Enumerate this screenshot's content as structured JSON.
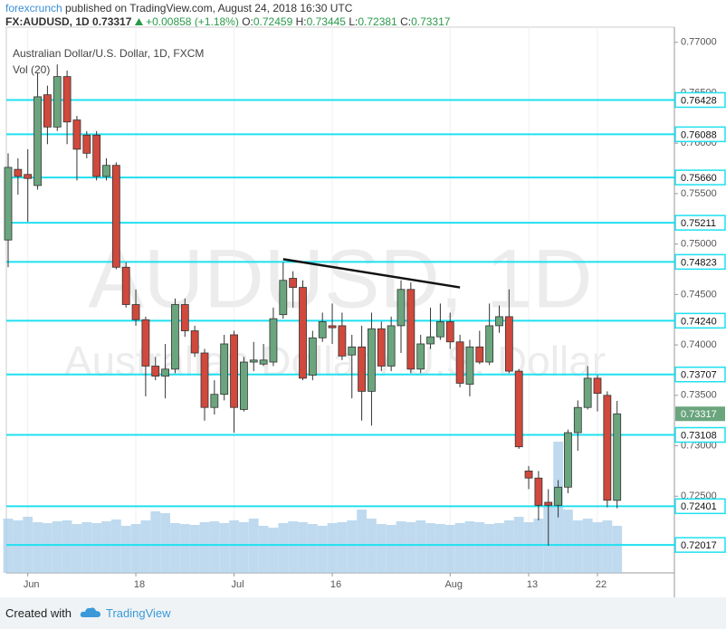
{
  "header": {
    "author": "forexcrunch",
    "published": "published on TradingView.com, August 24, 2018 16:30 UTC",
    "symbol": "FX:AUDUSD, 1D",
    "price": "0.73317",
    "change": "+0.00858 (+1.18%)",
    "ohlc": [
      {
        "label": "O:",
        "value": "0.72459"
      },
      {
        "label": "H:",
        "value": "0.73445"
      },
      {
        "label": "L:",
        "value": "0.72381"
      },
      {
        "label": "C:",
        "value": "0.73317"
      }
    ]
  },
  "footer": {
    "created": "Created with",
    "brand": "TradingView"
  },
  "chart_data": {
    "type": "candlestick",
    "legend_title": "Australian Dollar/U.S. Dollar, 1D, FXCM",
    "volume_title": "Vol (20)",
    "watermark_symbol": "AUDUSD, 1D",
    "watermark_desc": "Australian Dollar / U.S. Dollar",
    "categories": [
      null,
      null,
      "Jun",
      null,
      null,
      null,
      null,
      null,
      null,
      null,
      null,
      null,
      null,
      "18",
      null,
      null,
      null,
      null,
      null,
      null,
      null,
      null,
      null,
      "Jul",
      null,
      null,
      null,
      null,
      null,
      null,
      null,
      null,
      null,
      "16",
      null,
      null,
      null,
      null,
      null,
      null,
      null,
      null,
      null,
      null,
      null,
      "Aug",
      null,
      null,
      null,
      null,
      null,
      null,
      null,
      "13",
      null,
      null,
      null,
      null,
      null,
      null,
      "22",
      null,
      null
    ],
    "open": [
      0.7504,
      0.7574,
      0.7569,
      0.7558,
      0.7648,
      0.7616,
      0.7666,
      0.7623,
      0.7608,
      0.7608,
      0.7567,
      0.7578,
      0.7477,
      0.744,
      0.7425,
      0.7379,
      0.7369,
      0.7376,
      0.744,
      0.7414,
      0.7392,
      0.7338,
      0.7351,
      0.741,
      0.7336,
      0.7383,
      0.7381,
      0.7383,
      0.743,
      0.7466,
      0.7457,
      0.737,
      0.7407,
      0.7419,
      0.7419,
      0.739,
      0.7398,
      0.7354,
      0.7416,
      0.7379,
      0.7419,
      0.7455,
      0.7376,
      0.7401,
      0.7408,
      0.7423,
      0.7403,
      0.7361,
      0.7398,
      0.7383,
      0.7419,
      0.7428,
      0.7374,
      0.7275,
      0.7268,
      0.7244,
      0.7241,
      0.7259,
      0.7313,
      0.7338,
      0.7367,
      0.735,
      0.72459
    ],
    "high": [
      0.759,
      0.7585,
      0.7594,
      0.767,
      0.7657,
      0.7678,
      0.7672,
      0.7627,
      0.7612,
      0.7612,
      0.7585,
      0.7581,
      0.7482,
      0.7455,
      0.7428,
      0.7388,
      0.7401,
      0.7446,
      0.7446,
      0.7419,
      0.7396,
      0.7365,
      0.741,
      0.7414,
      0.7388,
      0.7403,
      0.7401,
      0.7437,
      0.7482,
      0.7473,
      0.7464,
      0.7414,
      0.7432,
      0.7441,
      0.7432,
      0.741,
      0.7419,
      0.7432,
      0.7423,
      0.7428,
      0.7464,
      0.7462,
      0.741,
      0.7437,
      0.7441,
      0.7432,
      0.741,
      0.7405,
      0.7414,
      0.7441,
      0.7439,
      0.7455,
      0.7376,
      0.728,
      0.7275,
      0.7257,
      0.7266,
      0.7316,
      0.7345,
      0.7379,
      0.737,
      0.7354,
      0.73445
    ],
    "low": [
      0.7477,
      0.7549,
      0.7522,
      0.7554,
      0.7599,
      0.7612,
      0.7599,
      0.7563,
      0.7585,
      0.7563,
      0.7563,
      0.7475,
      0.7437,
      0.7419,
      0.7349,
      0.7365,
      0.7347,
      0.7372,
      0.7408,
      0.7388,
      0.7325,
      0.7331,
      0.7345,
      0.7313,
      0.7334,
      0.7374,
      0.7379,
      0.7379,
      0.7426,
      0.7437,
      0.7365,
      0.7365,
      0.7403,
      0.7401,
      0.7385,
      0.7347,
      0.7325,
      0.732,
      0.7374,
      0.7374,
      0.7392,
      0.7372,
      0.7372,
      0.7396,
      0.7405,
      0.7396,
      0.7358,
      0.7349,
      0.7381,
      0.738,
      0.7412,
      0.7372,
      0.7297,
      0.7257,
      0.7226,
      0.7201,
      0.7229,
      0.7253,
      0.7295,
      0.7336,
      0.7334,
      0.7239,
      0.72381
    ],
    "close": [
      0.7576,
      0.7567,
      0.7565,
      0.7646,
      0.7616,
      0.7666,
      0.7621,
      0.7594,
      0.759,
      0.7567,
      0.7578,
      0.7477,
      0.744,
      0.7425,
      0.7379,
      0.7369,
      0.7376,
      0.744,
      0.7414,
      0.7392,
      0.7338,
      0.7351,
      0.7401,
      0.7338,
      0.7383,
      0.7385,
      0.7385,
      0.7426,
      0.7464,
      0.7457,
      0.7367,
      0.7407,
      0.7423,
      0.7417,
      0.7389,
      0.7398,
      0.7354,
      0.7416,
      0.7379,
      0.7419,
      0.7455,
      0.7376,
      0.7401,
      0.7408,
      0.7423,
      0.7403,
      0.7362,
      0.7398,
      0.7383,
      0.7419,
      0.7428,
      0.7374,
      0.7299,
      0.7268,
      0.7241,
      0.7241,
      0.7259,
      0.7313,
      0.7338,
      0.7367,
      0.7352,
      0.7246,
      0.73317
    ],
    "volume": [
      60,
      58,
      62,
      56,
      55,
      57,
      58,
      54,
      56,
      55,
      57,
      59,
      52,
      54,
      58,
      68,
      66,
      55,
      54,
      53,
      56,
      57,
      55,
      58,
      56,
      60,
      52,
      50,
      55,
      57,
      56,
      54,
      52,
      55,
      56,
      58,
      70,
      60,
      54,
      53,
      57,
      56,
      58,
      55,
      54,
      53,
      55,
      57,
      56,
      54,
      55,
      58,
      62,
      56,
      60,
      75,
      145,
      70,
      58,
      60,
      56,
      58,
      52
    ],
    "volume_ylim": [
      0,
      160
    ],
    "up_color": "#6aa57e",
    "down_color": "#d0493c",
    "volume_color": "#a9cdea",
    "ylim": [
      0.7174,
      0.7715
    ],
    "yticks": [
      {
        "value": 0.725,
        "label": "0.72500"
      },
      {
        "value": 0.73,
        "label": "0.73000"
      },
      {
        "value": 0.735,
        "label": "0.73500"
      },
      {
        "value": 0.74,
        "label": "0.74000"
      },
      {
        "value": 0.745,
        "label": "0.74500"
      },
      {
        "value": 0.75,
        "label": "0.75000"
      },
      {
        "value": 0.755,
        "label": "0.75500"
      },
      {
        "value": 0.76,
        "label": "0.76000"
      },
      {
        "value": 0.765,
        "label": "0.76500"
      },
      {
        "value": 0.77,
        "label": "0.77000"
      }
    ],
    "levels": [
      0.76428,
      0.76088,
      0.7566,
      0.75211,
      0.74823,
      0.7424,
      0.73707,
      0.73108,
      0.72401,
      0.72017
    ],
    "level_labels": [
      "0.76428",
      "0.76088",
      "0.75660",
      "0.75211",
      "0.74823",
      "0.74240",
      "0.73707",
      "0.73108",
      "0.72401",
      "0.72017"
    ],
    "level_color": "#1fe0f0",
    "last_price": 0.73317,
    "trendline": {
      "x": [
        28,
        46
      ],
      "y": [
        0.7485,
        0.7457
      ]
    },
    "grid": true
  }
}
